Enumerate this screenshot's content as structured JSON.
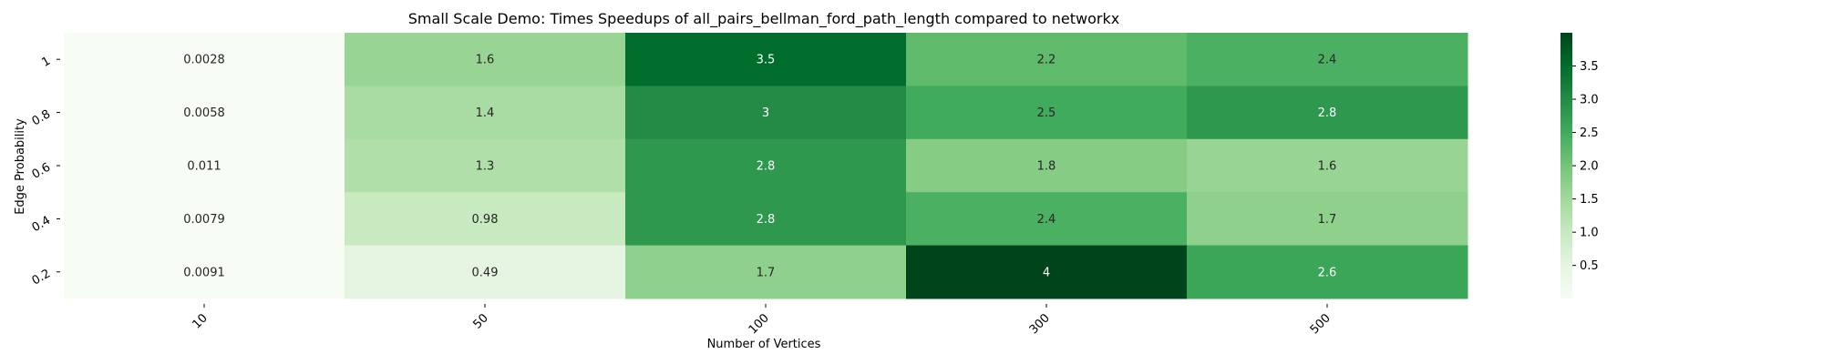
{
  "chart_data": {
    "type": "heatmap",
    "title": "Small Scale Demo: Times Speedups of all_pairs_bellman_ford_path_length compared to networkx",
    "xlabel": "Number of Vertices",
    "ylabel": "Edge Probability",
    "x_categories": [
      "10",
      "50",
      "100",
      "300",
      "500"
    ],
    "y_categories": [
      "1",
      "0.8",
      "0.6",
      "0.4",
      "0.2"
    ],
    "values": [
      [
        0.0028,
        1.6,
        3.5,
        2.2,
        2.4
      ],
      [
        0.0058,
        1.4,
        3,
        2.5,
        2.8
      ],
      [
        0.011,
        1.3,
        2.8,
        1.8,
        1.6
      ],
      [
        0.0079,
        0.98,
        2.8,
        2.4,
        1.7
      ],
      [
        0.0091,
        0.49,
        1.7,
        4,
        2.6
      ]
    ],
    "annotations": [
      [
        "0.0028",
        "1.6",
        "3.5",
        "2.2",
        "2.4"
      ],
      [
        "0.0058",
        "1.4",
        "3",
        "2.5",
        "2.8"
      ],
      [
        "0.011",
        "1.3",
        "2.8",
        "1.8",
        "1.6"
      ],
      [
        "0.0079",
        "0.98",
        "2.8",
        "2.4",
        "1.7"
      ],
      [
        "0.0091",
        "0.49",
        "1.7",
        "4",
        "2.6"
      ]
    ],
    "colormap": "Greens",
    "color_range": [
      0.0028,
      4
    ],
    "colorbar_ticks": [
      0.5,
      1.0,
      1.5,
      2.0,
      2.5,
      3.0,
      3.5
    ],
    "colorbar_tick_labels": [
      "0.5",
      "1.0",
      "1.5",
      "2.0",
      "2.5",
      "3.0",
      "3.5"
    ]
  }
}
